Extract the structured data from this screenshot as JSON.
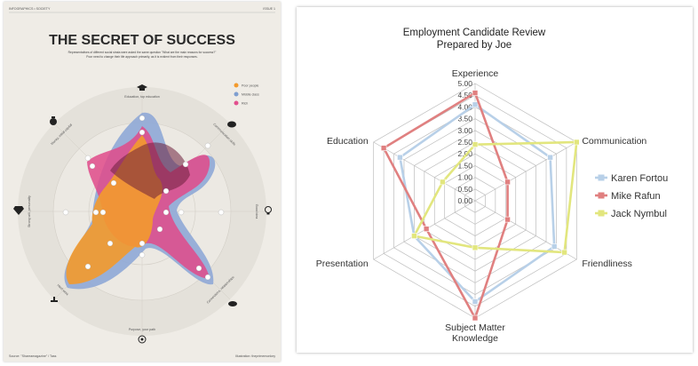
{
  "left_poster": {
    "header_left": "INFOGRAPHICS • SOCIETY",
    "header_right": "ISSUE 1",
    "title": "THE SECRET OF SUCCESS",
    "subtitle_line1": "Representatives of different social strata were asked the same question \"What are the main reasons for success?\"",
    "subtitle_line2": "Poor need to change their life approach primarily, as it is evident from their responses.",
    "legend": [
      {
        "label": "Poor people",
        "color": "#f39a2c",
        "icon": "person-icon"
      },
      {
        "label": "Middle class",
        "color": "#7f9fd0",
        "icon": "person-icon"
      },
      {
        "label": "Rich",
        "color": "#e2508e",
        "icon": "person-icon"
      }
    ],
    "category_icons": [
      "graduation-cap-icon",
      "handshake-icon",
      "lightbulb-icon",
      "handshake-icon",
      "target-icon",
      "scale-icon",
      "superman-icon",
      "money-bag-icon"
    ],
    "category_labels": [
      "Education, top education",
      "Communication skills",
      "Good idea",
      "Connections, relationships",
      "Purpose, your path",
      "Hard work",
      "Strong will, personality",
      "Money, initial capital"
    ],
    "footer_left": "Source: \"Shareamagazine\" / Tass",
    "footer_right": "Illustration: theprimemonkey"
  },
  "chart_data": {
    "type": "radar",
    "title": "Employment Candidate Review",
    "subtitle": "Prepared by Joe",
    "axes": [
      "Experience",
      "Communication",
      "Friendliness",
      "Subject Matter Knowledge",
      "Presentation",
      "Education"
    ],
    "axis_label_lines": [
      [
        "Experience"
      ],
      [
        "Communication"
      ],
      [
        "Friendliness"
      ],
      [
        "Subject Matter",
        "Knowledge"
      ],
      [
        "Presentation"
      ],
      [
        "Education"
      ]
    ],
    "rlim": [
      0,
      5
    ],
    "ticks": [
      "0.00",
      "0.50",
      "1.00",
      "1.50",
      "2.00",
      "2.50",
      "3.00",
      "3.50",
      "4.00",
      "4.50",
      "5.00"
    ],
    "series": [
      {
        "name": "Karen Fortou",
        "color": "#b8d0e8",
        "values": [
          4.1,
          3.7,
          3.9,
          4.3,
          3.0,
          3.7
        ]
      },
      {
        "name": "Mike Rafun",
        "color": "#e08080",
        "values": [
          4.6,
          1.6,
          1.6,
          5.0,
          2.4,
          4.5
        ]
      },
      {
        "name": "Jack Nymbul",
        "color": "#e2e67e",
        "values": [
          2.4,
          5.0,
          4.4,
          2.0,
          3.0,
          1.6
        ]
      }
    ],
    "legend_position": "right"
  }
}
